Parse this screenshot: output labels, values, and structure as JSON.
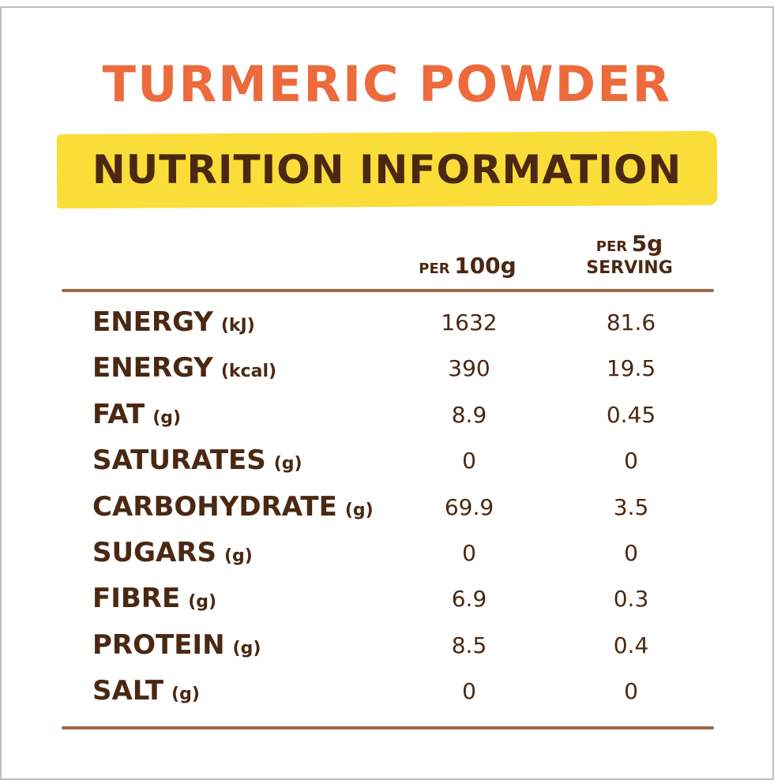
{
  "title": "TURMERIC POWDER",
  "subtitle": "NUTRITION INFORMATION",
  "columns": [
    {
      "prefix": "PER",
      "amount": "100g"
    },
    {
      "prefix": "PER",
      "amount": "5g",
      "suffix": "SERVING"
    }
  ],
  "rows": [
    {
      "name": "ENERGY",
      "unit": "(kJ)",
      "values": [
        "1632",
        "81.6"
      ]
    },
    {
      "name": "ENERGY",
      "unit": "(kcal)",
      "values": [
        "390",
        "19.5"
      ]
    },
    {
      "name": "FAT",
      "unit": "(g)",
      "values": [
        "8.9",
        "0.45"
      ]
    },
    {
      "name": "SATURATES",
      "unit": "(g)",
      "values": [
        "0",
        "0"
      ]
    },
    {
      "name": "CARBOHYDRATE",
      "unit": "(g)",
      "values": [
        "69.9",
        "3.5"
      ]
    },
    {
      "name": "SUGARS",
      "unit": "(g)",
      "values": [
        "0",
        "0"
      ]
    },
    {
      "name": "FIBRE",
      "unit": "(g)",
      "values": [
        "6.9",
        "0.3"
      ]
    },
    {
      "name": "PROTEIN",
      "unit": "(g)",
      "values": [
        "8.5",
        "0.4"
      ]
    },
    {
      "name": "SALT",
      "unit": "(g)",
      "values": [
        "0",
        "0"
      ]
    }
  ]
}
